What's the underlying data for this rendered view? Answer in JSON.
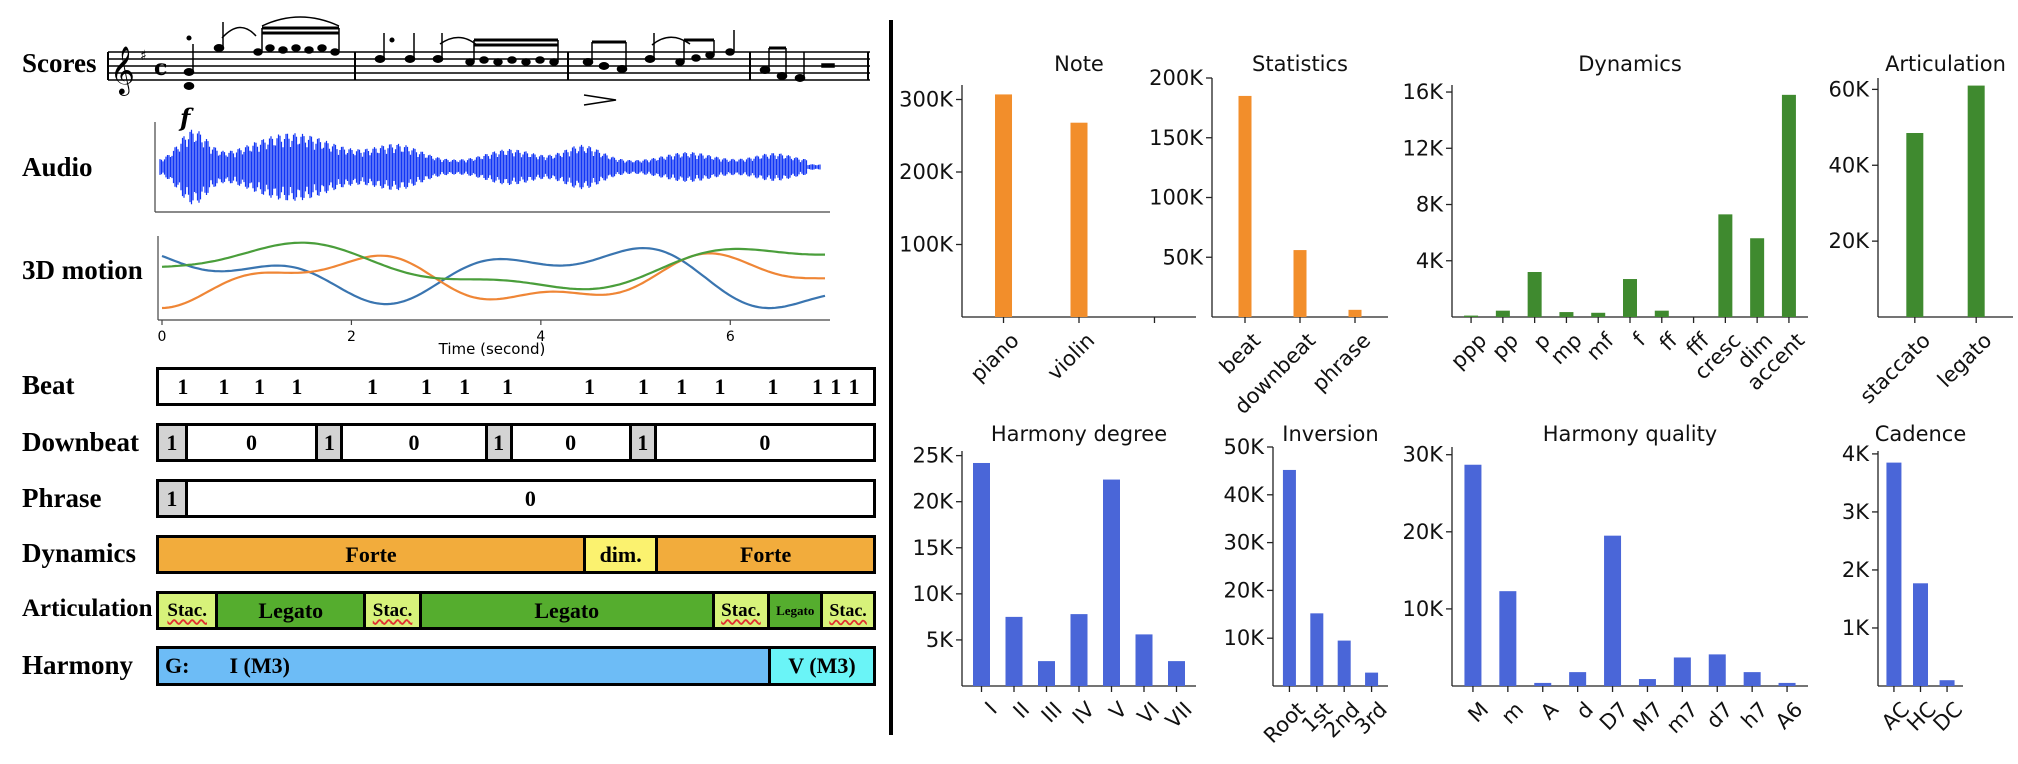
{
  "left": {
    "labels": {
      "scores": "Scores",
      "audio": "Audio",
      "motion": "3D motion",
      "beat": "Beat",
      "downbeat": "Downbeat",
      "phrase": "Phrase",
      "dynamics": "Dynamics",
      "articulation": "Articulation",
      "harmony": "Harmony"
    },
    "score_dynamic": "f",
    "motion_axis": {
      "ticks": [
        "0",
        "2",
        "4",
        "6"
      ],
      "xlabel": "Time (second)",
      "colors": [
        "#3a75b0",
        "#ef8636",
        "#4a9e3b"
      ]
    },
    "beat_values": [
      "1",
      "1",
      "1",
      "1",
      "1",
      "1",
      "1",
      "1",
      "1",
      "1",
      "1",
      "1",
      "1",
      "1",
      "1",
      "1"
    ],
    "downbeat_segments": [
      {
        "text": "1",
        "color": "#d3d3d3"
      },
      {
        "text": "0",
        "color": "#ffffff"
      },
      {
        "text": "1",
        "color": "#d3d3d3"
      },
      {
        "text": "0",
        "color": "#ffffff"
      },
      {
        "text": "1",
        "color": "#d3d3d3"
      },
      {
        "text": "0",
        "color": "#ffffff"
      },
      {
        "text": "1",
        "color": "#d3d3d3"
      },
      {
        "text": "0",
        "color": "#ffffff"
      }
    ],
    "phrase_segments": [
      {
        "text": "1",
        "color": "#d3d3d3"
      },
      {
        "text": "0",
        "color": "#ffffff"
      }
    ],
    "dynamics_segments": [
      {
        "text": "Forte",
        "color": "#f2ac3c"
      },
      {
        "text": "dim.",
        "color": "#fbf26f"
      },
      {
        "text": "Forte",
        "color": "#f2ac3c"
      }
    ],
    "articulation_segments": [
      {
        "text": "Stac.",
        "color": "#d7f27a"
      },
      {
        "text": "Legato",
        "color": "#55ad2e"
      },
      {
        "text": "Stac.",
        "color": "#d7f27a"
      },
      {
        "text": "Legato",
        "color": "#55ad2e"
      },
      {
        "text": "Stac.",
        "color": "#d7f27a"
      },
      {
        "text": "Legato",
        "color": "#55ad2e"
      },
      {
        "text": "Stac.",
        "color": "#d7f27a"
      }
    ],
    "harmony_segments": [
      {
        "key": "G:",
        "text": "I (M3)",
        "color": "#6dbcf6"
      },
      {
        "text": "V (M3)",
        "color": "#6af4f7"
      }
    ],
    "colors": {
      "audio": "#1135f5"
    }
  },
  "chart_data": [
    {
      "type": "bar",
      "title": "Note",
      "categories": [
        "piano",
        "violin",
        ""
      ],
      "values": [
        307000,
        268000,
        0
      ],
      "ylim": [
        0,
        320000
      ],
      "yticks": [
        "100K",
        "200K",
        "300K"
      ],
      "color": "#f28e2b"
    },
    {
      "type": "bar",
      "title": "Statistics",
      "categories": [
        "beat",
        "downbeat",
        "phrase"
      ],
      "values": [
        185000,
        56000,
        6000
      ],
      "ylim": [
        0,
        200000
      ],
      "yticks": [
        "50K",
        "100K",
        "150K",
        "200K"
      ],
      "color": "#f28e2b"
    },
    {
      "type": "bar",
      "title": "Dynamics",
      "categories": [
        "ppp",
        "pp",
        "p",
        "mp",
        "mf",
        "f",
        "ff",
        "fff",
        "cresc",
        "dim",
        "accent"
      ],
      "values": [
        100,
        450,
        3200,
        350,
        300,
        2700,
        450,
        0,
        7300,
        5600,
        15800
      ],
      "ylim": [
        0,
        16500
      ],
      "yticks": [
        "4K",
        "8K",
        "12K",
        "16K"
      ],
      "color": "#3f8a2f"
    },
    {
      "type": "bar",
      "title": "Articulation",
      "categories": [
        "staccato",
        "legato"
      ],
      "values": [
        48500,
        61000
      ],
      "ylim": [
        0,
        63000
      ],
      "yticks": [
        "20K",
        "40K",
        "60K"
      ],
      "color": "#3f8a2f"
    },
    {
      "type": "bar",
      "title": "Harmony degree",
      "categories": [
        "I",
        "II",
        "III",
        "IV",
        "V",
        "VI",
        "VII"
      ],
      "values": [
        24200,
        7500,
        2700,
        7800,
        22400,
        5600,
        2700
      ],
      "ylim": [
        0,
        25500
      ],
      "yticks": [
        "5K",
        "10K",
        "15K",
        "20K",
        "25K"
      ],
      "color": "#4a66d8"
    },
    {
      "type": "bar",
      "title": "Inversion",
      "categories": [
        "Root",
        "1st",
        "2nd",
        "3rd"
      ],
      "values": [
        45200,
        15200,
        9500,
        2800
      ],
      "ylim": [
        0,
        50000
      ],
      "yticks": [
        "10K",
        "20K",
        "30K",
        "40K",
        "50K"
      ],
      "color": "#4a66d8"
    },
    {
      "type": "bar",
      "title": "Harmony quality",
      "categories": [
        "M",
        "m",
        "A",
        "d",
        "D7",
        "M7",
        "m7",
        "d7",
        "h7",
        "A6"
      ],
      "values": [
        28700,
        12300,
        400,
        1800,
        19500,
        900,
        3700,
        4100,
        1800,
        400
      ],
      "ylim": [
        0,
        31000
      ],
      "yticks": [
        "10K",
        "20K",
        "30K"
      ],
      "color": "#4a66d8"
    },
    {
      "type": "bar",
      "title": "Cadence",
      "categories": [
        "AC",
        "HC",
        "DC"
      ],
      "values": [
        3850,
        1770,
        100
      ],
      "ylim": [
        0,
        4050
      ],
      "yticks": [
        "1K",
        "2K",
        "3K",
        "4K"
      ],
      "color": "#4a66d8"
    }
  ]
}
